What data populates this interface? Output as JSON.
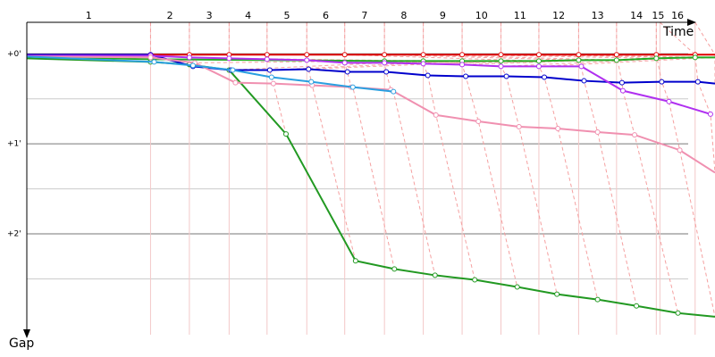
{
  "chart_data": {
    "type": "line",
    "x_label": "Time",
    "y_label": "Gap",
    "xlim": [
      0,
      7.62
    ],
    "ylim": [
      -0.35,
      3.12
    ],
    "yticks": [
      {
        "value": 0,
        "label": "+0'"
      },
      {
        "value": 1,
        "label": "+1'"
      },
      {
        "value": 2,
        "label": "+2'"
      }
    ],
    "minor_yticks": [
      0.5,
      1.5,
      2.5
    ],
    "lap_labels": [
      "1",
      "2",
      "3",
      "4",
      "5",
      "6",
      "7",
      "8",
      "9",
      "10",
      "11",
      "12",
      "13",
      "14",
      "15",
      "16"
    ],
    "lap_ends": [
      1.37,
      1.8,
      2.24,
      2.66,
      3.1,
      3.52,
      3.96,
      4.39,
      4.82,
      5.25,
      5.67,
      6.11,
      6.53,
      6.97,
      7.01,
      7.4
    ],
    "series": [
      {
        "color": "#e00000",
        "x": [
          0,
          1.37,
          1.8,
          2.24,
          2.66,
          3.1,
          3.52,
          3.96,
          4.39,
          4.82,
          5.25,
          5.67,
          6.11,
          6.53,
          6.97,
          7.4,
          7.62
        ],
        "values": [
          0.01,
          0.01,
          0.01,
          0.01,
          0.01,
          0.01,
          0.01,
          0.01,
          0.01,
          0.01,
          0.01,
          0.01,
          0.01,
          0.01,
          0.01,
          0.01,
          0.01
        ]
      },
      {
        "color": "#22aa22",
        "x": [
          0,
          1.37,
          3.96,
          4.39,
          4.82,
          5.25,
          5.67,
          6.11,
          6.53,
          6.97,
          7.4,
          7.62
        ],
        "values": [
          0.03,
          0.06,
          0.08,
          0.08,
          0.08,
          0.08,
          0.08,
          0.07,
          0.07,
          0.05,
          0.04,
          0.04
        ]
      },
      {
        "color": "#229922",
        "x": [
          0,
          1.37,
          1.8,
          2.24,
          2.87,
          3.64,
          4.07,
          4.52,
          4.96,
          5.43,
          5.87,
          6.32,
          6.75,
          7.21,
          7.62
        ],
        "values": [
          0.05,
          0.09,
          0.12,
          0.18,
          0.89,
          2.3,
          2.39,
          2.46,
          2.51,
          2.59,
          2.67,
          2.73,
          2.8,
          2.88,
          2.92
        ]
      },
      {
        "color": "#0000cc",
        "x": [
          0,
          1.37,
          1.84,
          2.26,
          2.69,
          3.12,
          3.55,
          3.98,
          4.44,
          4.86,
          5.31,
          5.73,
          6.17,
          6.59,
          7.03,
          7.43,
          7.62
        ],
        "values": [
          0.01,
          0.01,
          0.14,
          0.18,
          0.18,
          0.17,
          0.2,
          0.2,
          0.24,
          0.25,
          0.25,
          0.26,
          0.3,
          0.32,
          0.31,
          0.31,
          0.33
        ]
      },
      {
        "color": "#b030f0",
        "x": [
          0,
          1.37,
          1.8,
          2.24,
          2.66,
          3.1,
          3.52,
          3.96,
          4.39,
          4.82,
          5.25,
          5.67,
          6.14,
          6.6,
          7.11,
          7.57
        ],
        "values": [
          0.02,
          0.02,
          0.04,
          0.05,
          0.06,
          0.07,
          0.1,
          0.1,
          0.11,
          0.12,
          0.14,
          0.14,
          0.14,
          0.41,
          0.53,
          0.67
        ]
      },
      {
        "color": "#f090b0",
        "x": [
          0,
          1.37,
          1.86,
          2.31,
          2.73,
          3.16,
          3.59,
          4.03,
          4.53,
          5.0,
          5.45,
          5.88,
          6.32,
          6.73,
          7.23,
          7.62
        ],
        "values": [
          0.03,
          0.04,
          0.1,
          0.32,
          0.33,
          0.35,
          0.37,
          0.4,
          0.68,
          0.75,
          0.81,
          0.83,
          0.87,
          0.9,
          1.07,
          1.32
        ]
      },
      {
        "color": "#2a9fe0",
        "x": [
          0,
          1.41,
          1.84,
          2.28,
          2.71,
          3.15,
          3.61,
          4.06
        ],
        "values": [
          0.03,
          0.09,
          0.13,
          0.18,
          0.26,
          0.31,
          0.37,
          0.42
        ]
      }
    ]
  }
}
